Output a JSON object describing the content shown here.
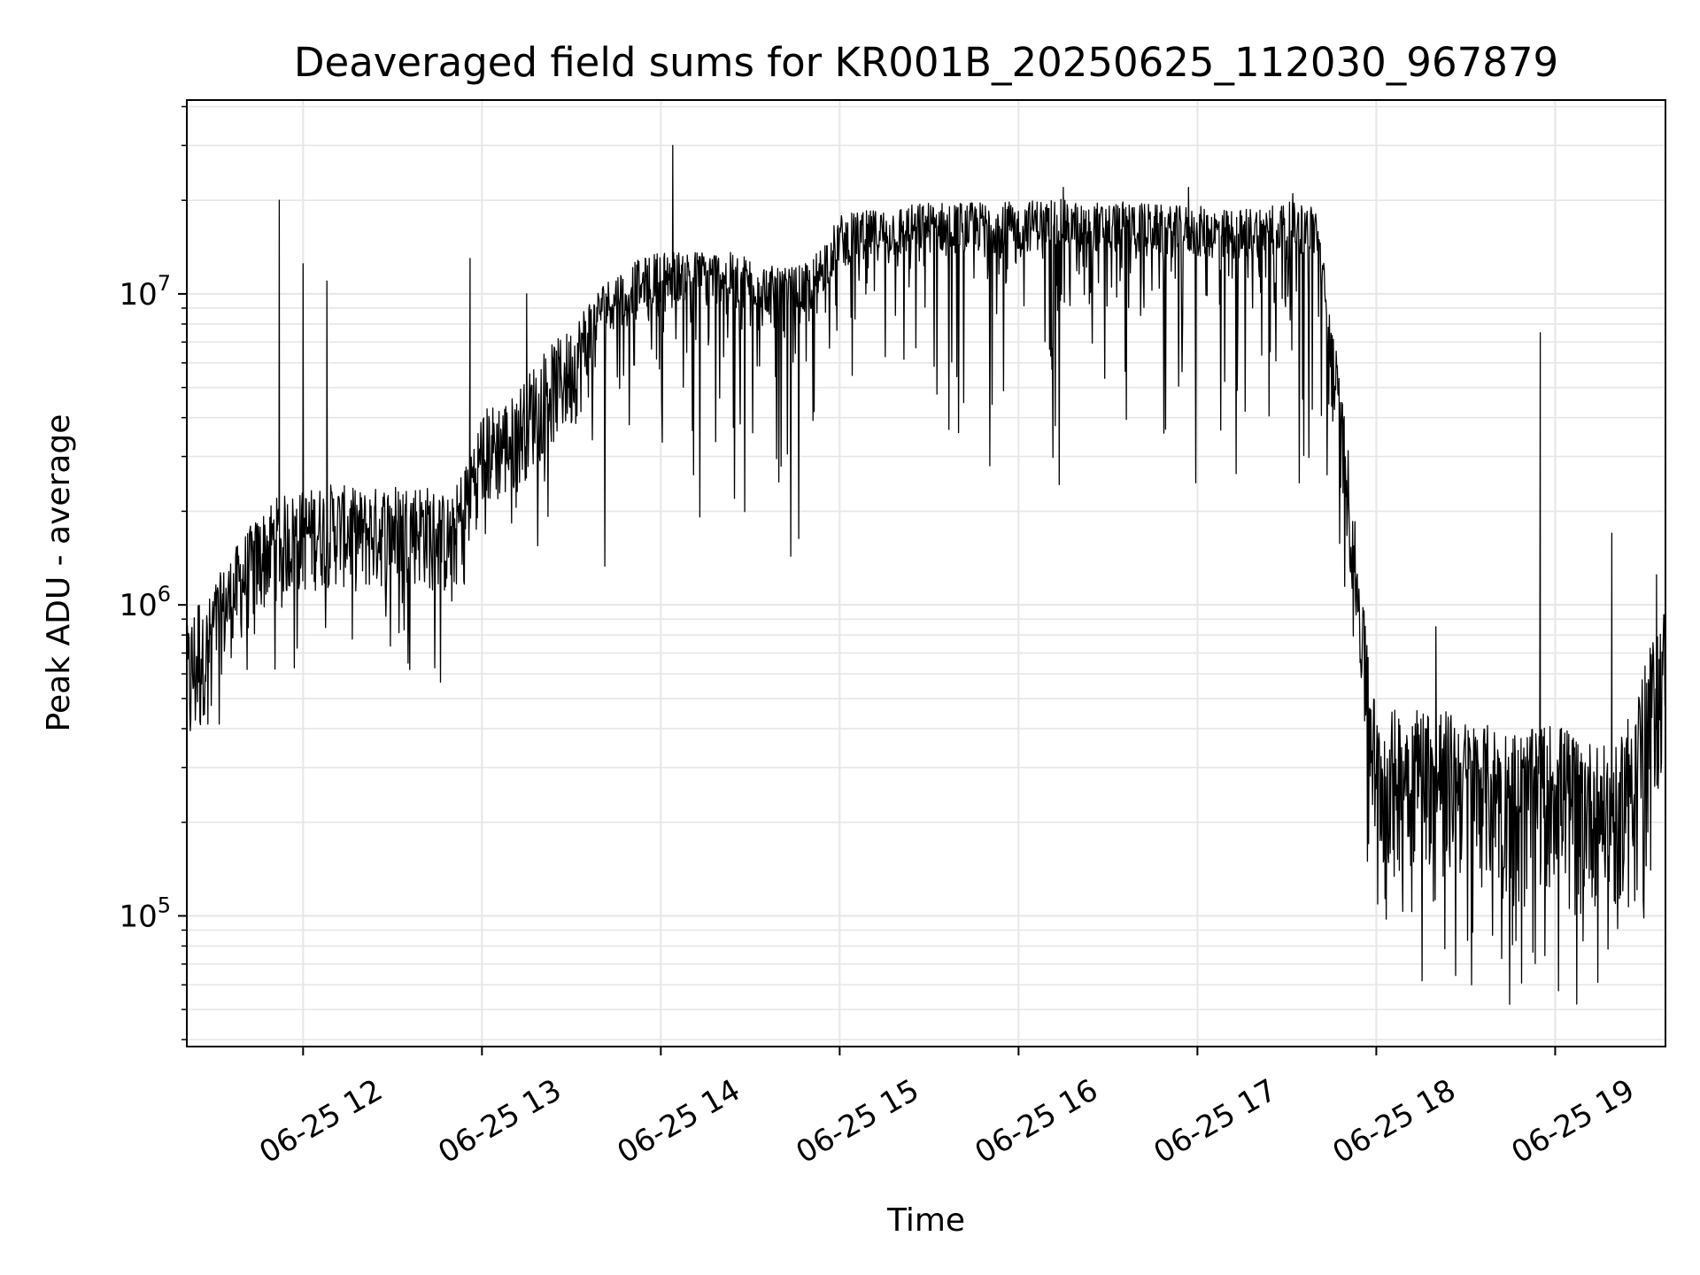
{
  "chart_data": {
    "type": "line",
    "title": "Deaveraged field sums for KR001B_20250625_112030_967879",
    "xlabel": "Time",
    "ylabel": "Peak ADU - average",
    "y_scale": "log",
    "ylim": [
      38000,
      42000000
    ],
    "xlim": [
      "06-25 11:21",
      "06-25 19:37"
    ],
    "x_ticks": [
      "06-25 12",
      "06-25 13",
      "06-25 14",
      "06-25 15",
      "06-25 16",
      "06-25 17",
      "06-25 18",
      "06-25 19"
    ],
    "y_ticks": [
      {
        "base": "10",
        "exp": "5",
        "value": 100000
      },
      {
        "base": "10",
        "exp": "6",
        "value": 1000000
      },
      {
        "base": "10",
        "exp": "7",
        "value": 10000000
      }
    ],
    "grid": true,
    "legend": "none",
    "line_color": "#000000",
    "series": [
      {
        "x": [
          "06-25 11:21",
          "06-25 11:30",
          "06-25 11:40",
          "06-25 11:50",
          "06-25 12:00",
          "06-25 12:10",
          "06-25 12:20",
          "06-25 12:30",
          "06-25 12:40",
          "06-25 12:50",
          "06-25 13:00",
          "06-25 13:10",
          "06-25 13:20",
          "06-25 13:30",
          "06-25 13:40",
          "06-25 13:50",
          "06-25 14:00",
          "06-25 14:10",
          "06-25 14:20",
          "06-25 14:30",
          "06-25 14:40",
          "06-25 14:50",
          "06-25 15:00",
          "06-25 15:10",
          "06-25 15:20",
          "06-25 15:30",
          "06-25 15:40",
          "06-25 15:50",
          "06-25 16:00",
          "06-25 16:10",
          "06-25 16:20",
          "06-25 16:30",
          "06-25 16:40",
          "06-25 16:50",
          "06-25 17:00",
          "06-25 17:10",
          "06-25 17:20",
          "06-25 17:30",
          "06-25 17:40",
          "06-25 17:50",
          "06-25 18:00",
          "06-25 18:10",
          "06-25 18:20",
          "06-25 18:30",
          "06-25 18:40",
          "06-25 18:50",
          "06-25 19:00",
          "06-25 19:10",
          "06-25 19:20",
          "06-25 19:30",
          "06-25 19:37"
        ],
        "y": [
          500000,
          900000,
          1300000,
          1700000,
          1800000,
          1900000,
          1800000,
          1900000,
          1900000,
          1700000,
          3300000,
          3600000,
          5000000,
          6000000,
          9000000,
          10500000,
          11500000,
          11500000,
          11500000,
          11000000,
          10000000,
          10500000,
          15000000,
          15500000,
          16000000,
          16500000,
          16500000,
          16500000,
          16500000,
          17000000,
          16500000,
          16500000,
          16500000,
          16000000,
          16000000,
          15500000,
          16000000,
          16500000,
          16000000,
          2800000,
          260000,
          280000,
          280000,
          250000,
          240000,
          230000,
          250000,
          220000,
          200000,
          380000,
          600000
        ],
        "spikes": [
          {
            "x": "06-25 11:52",
            "y": 20000000
          },
          {
            "x": "06-25 12:00",
            "y": 12500000
          },
          {
            "x": "06-25 12:08",
            "y": 11000000
          },
          {
            "x": "06-25 12:56",
            "y": 13000000
          },
          {
            "x": "06-25 13:15",
            "y": 10000000
          },
          {
            "x": "06-25 14:04",
            "y": 30000000
          },
          {
            "x": "06-25 16:15",
            "y": 22000000
          },
          {
            "x": "06-25 16:57",
            "y": 22000000
          },
          {
            "x": "06-25 17:32",
            "y": 21000000
          },
          {
            "x": "06-25 18:20",
            "y": 850000
          },
          {
            "x": "06-25 18:55",
            "y": 7500000
          },
          {
            "x": "06-25 19:19",
            "y": 1700000
          },
          {
            "x": "06-25 19:34",
            "y": 1250000
          }
        ]
      }
    ]
  }
}
